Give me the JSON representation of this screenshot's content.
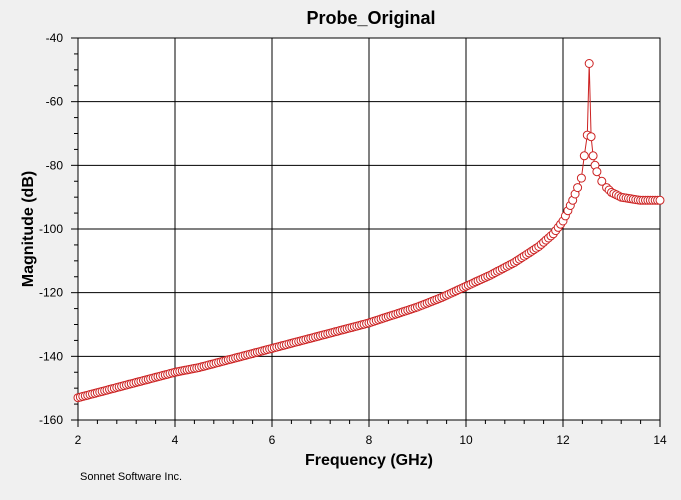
{
  "chart_data": {
    "type": "line",
    "title": "Probe_Original",
    "xlabel": "Frequency (GHz)",
    "ylabel": "Magnitude (dB)",
    "xlim": [
      2,
      14
    ],
    "ylim": [
      -160,
      -40
    ],
    "xticks": [
      2,
      4,
      6,
      8,
      10,
      12,
      14
    ],
    "yticks": [
      -40,
      -60,
      -80,
      -100,
      -120,
      -140,
      -160
    ],
    "grid": true,
    "marker": "open-circle",
    "series_color": "#cc2222",
    "series": [
      {
        "x": [
          2.0,
          2.5,
          3.0,
          3.5,
          4.0,
          4.5,
          5.0,
          5.5,
          6.0,
          6.5,
          7.0,
          7.5,
          8.0,
          8.5,
          9.0,
          9.5,
          10.0,
          10.5,
          11.0,
          11.5,
          11.8,
          12.0,
          12.2,
          12.3,
          12.38,
          12.44,
          12.5,
          12.54,
          12.58,
          12.62,
          12.66,
          12.7,
          12.8,
          12.9,
          13.0,
          13.2,
          13.4,
          13.6,
          13.8,
          14.0
        ],
        "y": [
          -153,
          -151,
          -149,
          -147,
          -145,
          -143.5,
          -141.5,
          -139.5,
          -137.5,
          -135.5,
          -133.5,
          -131.5,
          -129.5,
          -127,
          -124.5,
          -121.5,
          -118,
          -114.5,
          -110.5,
          -105.5,
          -101.5,
          -97.5,
          -91,
          -87,
          -84,
          -77,
          -70.5,
          -48,
          -71,
          -77,
          -80,
          -82,
          -85,
          -87,
          -88.5,
          -90,
          -90.5,
          -91,
          -91,
          -91
        ]
      }
    ]
  },
  "footer": {
    "text": "Sonnet Software Inc."
  }
}
